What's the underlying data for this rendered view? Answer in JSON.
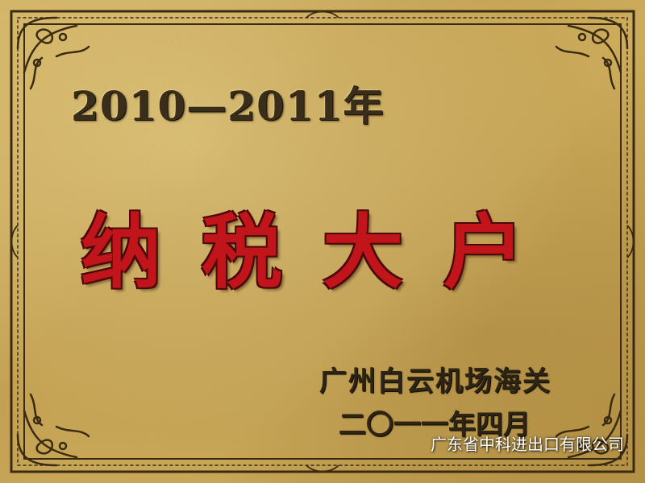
{
  "plaque": {
    "year_line": "2010—2011年",
    "title": "纳税大户",
    "issuer": "广州白云机场海关",
    "date": "二〇一一年四月"
  },
  "watermark": {
    "text": "广东省中科进出口有限公司"
  },
  "colors": {
    "gold_background": "#d2b05d",
    "title_red": "#c2141b",
    "text_dark": "#2e2414",
    "border_dark": "#3a2a12"
  },
  "icons": {
    "corner_ornament": "scroll-flourish-icon",
    "border": "decorative-frame"
  }
}
